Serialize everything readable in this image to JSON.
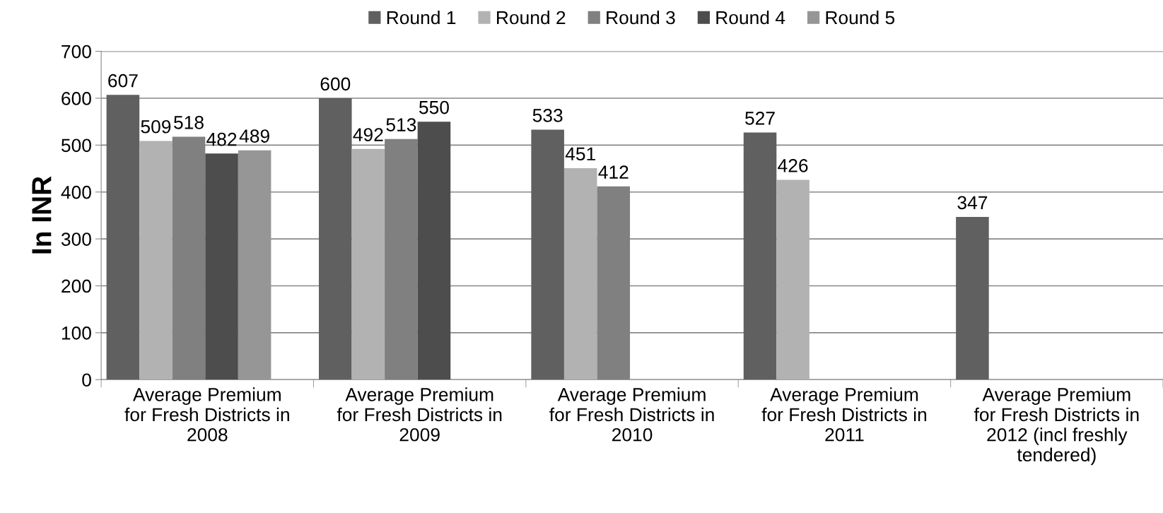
{
  "chart_data": {
    "type": "bar",
    "ylabel": "In INR",
    "categories": [
      "Average Premium\nfor Fresh Districts in\n2008",
      "Average Premium\nfor Fresh Districts in\n2009",
      "Average Premium\nfor Fresh Districts in\n2010",
      "Average Premium\nfor Fresh Districts in\n2011",
      "Average Premium\nfor Fresh Districts in\n2012 (incl freshly\ntendered)"
    ],
    "series": [
      {
        "name": "Round 1",
        "color": "#606060",
        "values": [
          607,
          600,
          533,
          527,
          347
        ]
      },
      {
        "name": "Round 2",
        "color": "#b2b2b2",
        "values": [
          509,
          492,
          451,
          426,
          null
        ]
      },
      {
        "name": "Round 3",
        "color": "#808080",
        "values": [
          518,
          513,
          412,
          null,
          null
        ]
      },
      {
        "name": "Round 4",
        "color": "#4d4d4d",
        "values": [
          482,
          550,
          null,
          null,
          null
        ]
      },
      {
        "name": "Round 5",
        "color": "#969696",
        "values": [
          489,
          null,
          null,
          null,
          null
        ]
      }
    ],
    "ylim": [
      0,
      700
    ],
    "yticks": [
      0,
      100,
      200,
      300,
      400,
      500,
      600,
      700
    ],
    "grid": "y",
    "legend": "top",
    "data_labels": true
  }
}
